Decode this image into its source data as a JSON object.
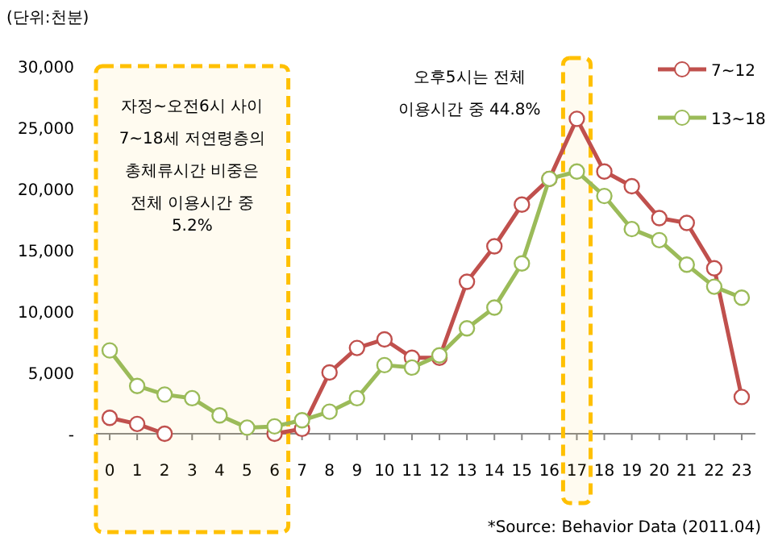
{
  "chart_data": {
    "type": "line",
    "ylabel": "(단위:천분)",
    "x": [
      0,
      1,
      2,
      3,
      4,
      5,
      6,
      7,
      8,
      9,
      10,
      11,
      12,
      13,
      14,
      15,
      16,
      17,
      18,
      19,
      20,
      21,
      22,
      23
    ],
    "xlim": [
      -0.5,
      23.5
    ],
    "xticks": [
      0,
      1,
      2,
      3,
      4,
      5,
      6,
      7,
      8,
      9,
      10,
      11,
      12,
      13,
      14,
      15,
      16,
      17,
      18,
      19,
      20,
      21,
      22,
      23
    ],
    "series": [
      {
        "name": "7~12",
        "color": "#c0504d",
        "values": [
          1300,
          800,
          0,
          null,
          null,
          null,
          0,
          400,
          5000,
          7000,
          7700,
          6200,
          6200,
          12400,
          15300,
          18700,
          20800,
          25700,
          21400,
          20200,
          17600,
          17200,
          13500,
          3000
        ]
      },
      {
        "name": "13~18",
        "color": "#9bbb59",
        "values": [
          6800,
          3900,
          3200,
          2900,
          1500,
          500,
          600,
          1100,
          1800,
          2900,
          5600,
          5400,
          6400,
          8600,
          10300,
          13900,
          20800,
          21400,
          19400,
          16700,
          15800,
          13800,
          12000,
          11100
        ]
      }
    ],
    "ylim": [
      0,
      30000
    ],
    "yticks": [
      {
        "value": 0,
        "label": "-"
      },
      {
        "value": 5000,
        "label": "5,000"
      },
      {
        "value": 10000,
        "label": "10,000"
      },
      {
        "value": 15000,
        "label": "15,000"
      },
      {
        "value": 20000,
        "label": "20,000"
      },
      {
        "value": 25000,
        "label": "25,000"
      },
      {
        "value": 30000,
        "label": "30,000"
      }
    ],
    "bands": [
      {
        "axis": "x",
        "from": -0.5,
        "to": 6.5,
        "color": "#ffc000",
        "label": "자정~오전6시 사이\n7~18세 저연령층의\n총체류시간 비중은\n전체 이용시간 중\n5.2%"
      },
      {
        "axis": "x",
        "from": 16.5,
        "to": 17.5,
        "color": "#ffc000",
        "label": "오후5시는 전체\n이용시간 중 44.8%"
      }
    ],
    "annotations": [
      "*Source: Behavior Data (2011.04)"
    ],
    "marker": "circle",
    "grid": false,
    "legend": "top right"
  }
}
